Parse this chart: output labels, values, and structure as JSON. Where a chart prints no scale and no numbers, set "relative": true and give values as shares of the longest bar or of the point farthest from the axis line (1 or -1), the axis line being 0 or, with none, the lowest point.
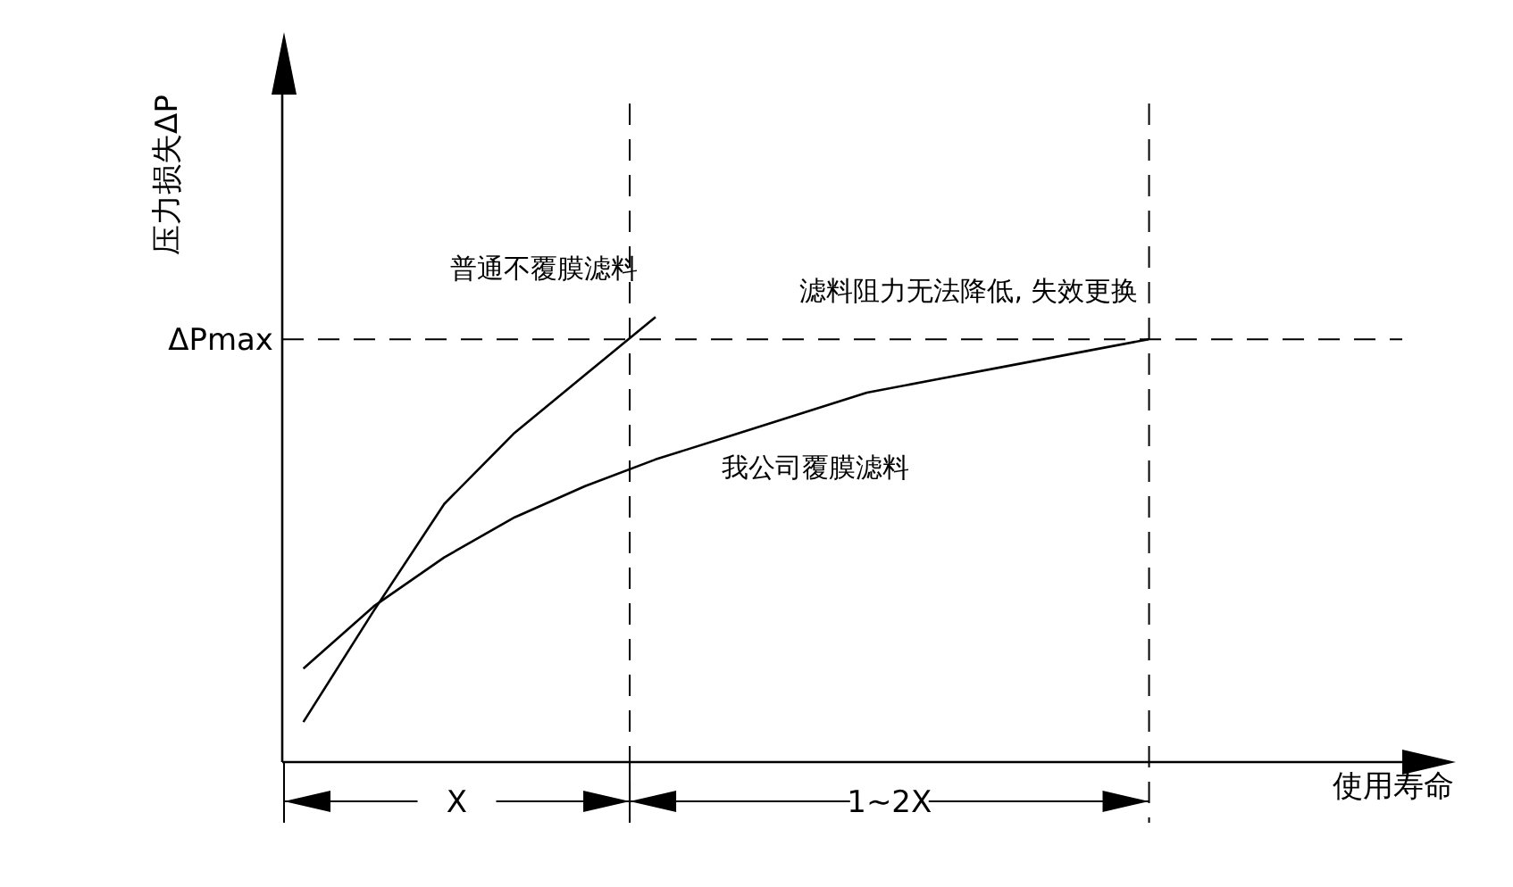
{
  "chart_data": {
    "type": "line",
    "relative": true,
    "ylabel": "压力损失ΔP",
    "xlabel": "使用寿命",
    "marker": "none",
    "line_style": "solid",
    "categories": [
      null,
      null,
      null,
      null,
      null,
      null,
      null,
      null,
      null,
      null,
      null,
      null,
      null
    ],
    "series": [
      {
        "name": "普通不覆膜滤料",
        "color": "#000000",
        "values": [
          0.09,
          0.34,
          0.58,
          0.74,
          0.87,
          1.0,
          null,
          null,
          null,
          null,
          null,
          null,
          null
        ]
      },
      {
        "name": "我公司覆膜滤料",
        "color": "#000000",
        "values": [
          0.21,
          0.35,
          0.46,
          0.55,
          0.62,
          0.68,
          0.73,
          0.78,
          0.83,
          0.86,
          0.89,
          0.92,
          0.95
        ]
      }
    ],
    "ref_lines": [
      {
        "axis": "y",
        "value": 0.95,
        "label": "ΔPmax",
        "line_style": "dashed",
        "color": "#000000"
      }
    ],
    "annotations": [
      {
        "text": "滤料阻力无法降低, 失效更换",
        "y": 0.95
      },
      "X",
      "1~2X"
    ]
  }
}
